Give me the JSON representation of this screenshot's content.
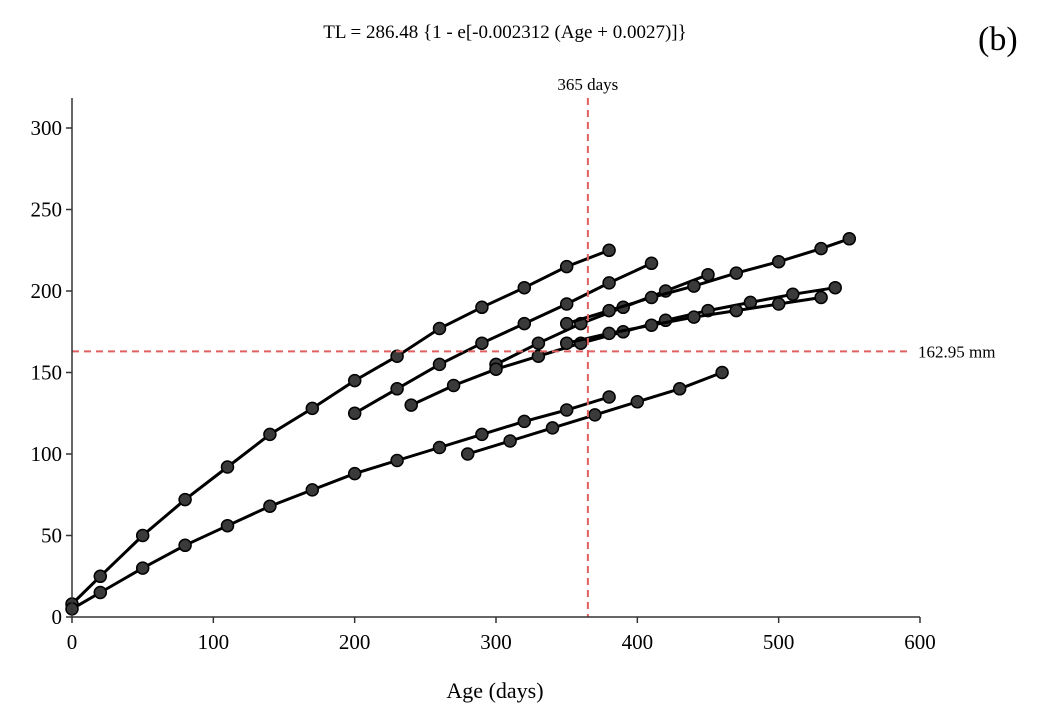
{
  "chart_data": {
    "type": "scatter",
    "title": "TL = 286.48 {1 - e[-0.002312 (Age + 0.0027)]}",
    "panel_label": "(b)",
    "xlabel": "Age (days)",
    "ylabel": "",
    "xlim": [
      0,
      600
    ],
    "ylim": [
      0,
      320
    ],
    "x_ticks": [
      0,
      100,
      200,
      300,
      400,
      500,
      600
    ],
    "y_ticks": [
      0,
      50,
      100,
      150,
      200,
      250,
      300
    ],
    "x_tick_labels": [
      "0",
      "100",
      "200",
      "300",
      "400",
      "500",
      "600"
    ],
    "y_tick_labels": [
      "0",
      "50",
      "100",
      "150",
      "200",
      "250",
      "300"
    ],
    "grid": false,
    "legend": "none",
    "marker_color": "#000000",
    "reference_color": "#e06060",
    "reference_lines": {
      "vertical": {
        "x": 365,
        "label": "365 days"
      },
      "horizontal": {
        "y": 162.95,
        "label": "162.95 mm"
      }
    },
    "curve_model": {
      "Linf": 286.48,
      "k": 0.002312,
      "t0": 0.0027
    },
    "series": [
      {
        "x": [
          0,
          20,
          50,
          80,
          110,
          140,
          170,
          200,
          230,
          260,
          290,
          320,
          350,
          380
        ],
        "y": [
          8,
          25,
          50,
          72,
          92,
          112,
          128,
          145,
          160,
          177,
          190,
          202,
          215,
          225
        ]
      },
      {
        "x": [
          200,
          230,
          260,
          290,
          320,
          350,
          380,
          410
        ],
        "y": [
          125,
          140,
          155,
          168,
          180,
          192,
          205,
          217
        ]
      },
      {
        "x": [
          300,
          330,
          360,
          390,
          420,
          450
        ],
        "y": [
          155,
          168,
          180,
          190,
          200,
          210
        ]
      },
      {
        "x": [
          350,
          380,
          410,
          440,
          470,
          500,
          530,
          550
        ],
        "y": [
          180,
          188,
          196,
          203,
          211,
          218,
          226,
          232
        ]
      },
      {
        "x": [
          240,
          270,
          300,
          330,
          360,
          390,
          420,
          450,
          480,
          510,
          540
        ],
        "y": [
          130,
          142,
          152,
          160,
          168,
          175,
          182,
          188,
          193,
          198,
          202
        ]
      },
      {
        "x": [
          350,
          380,
          410,
          440,
          470,
          500,
          530
        ],
        "y": [
          168,
          174,
          179,
          184,
          188,
          192,
          196
        ]
      },
      {
        "x": [
          280,
          310,
          340,
          370,
          400,
          430,
          460
        ],
        "y": [
          100,
          108,
          116,
          124,
          132,
          140,
          150
        ]
      },
      {
        "x": [
          0,
          20,
          50,
          80,
          110,
          140,
          170,
          200,
          230,
          260,
          290,
          320,
          350,
          380
        ],
        "y": [
          5,
          15,
          30,
          44,
          56,
          68,
          78,
          88,
          96,
          104,
          112,
          120,
          127,
          135
        ]
      }
    ]
  }
}
